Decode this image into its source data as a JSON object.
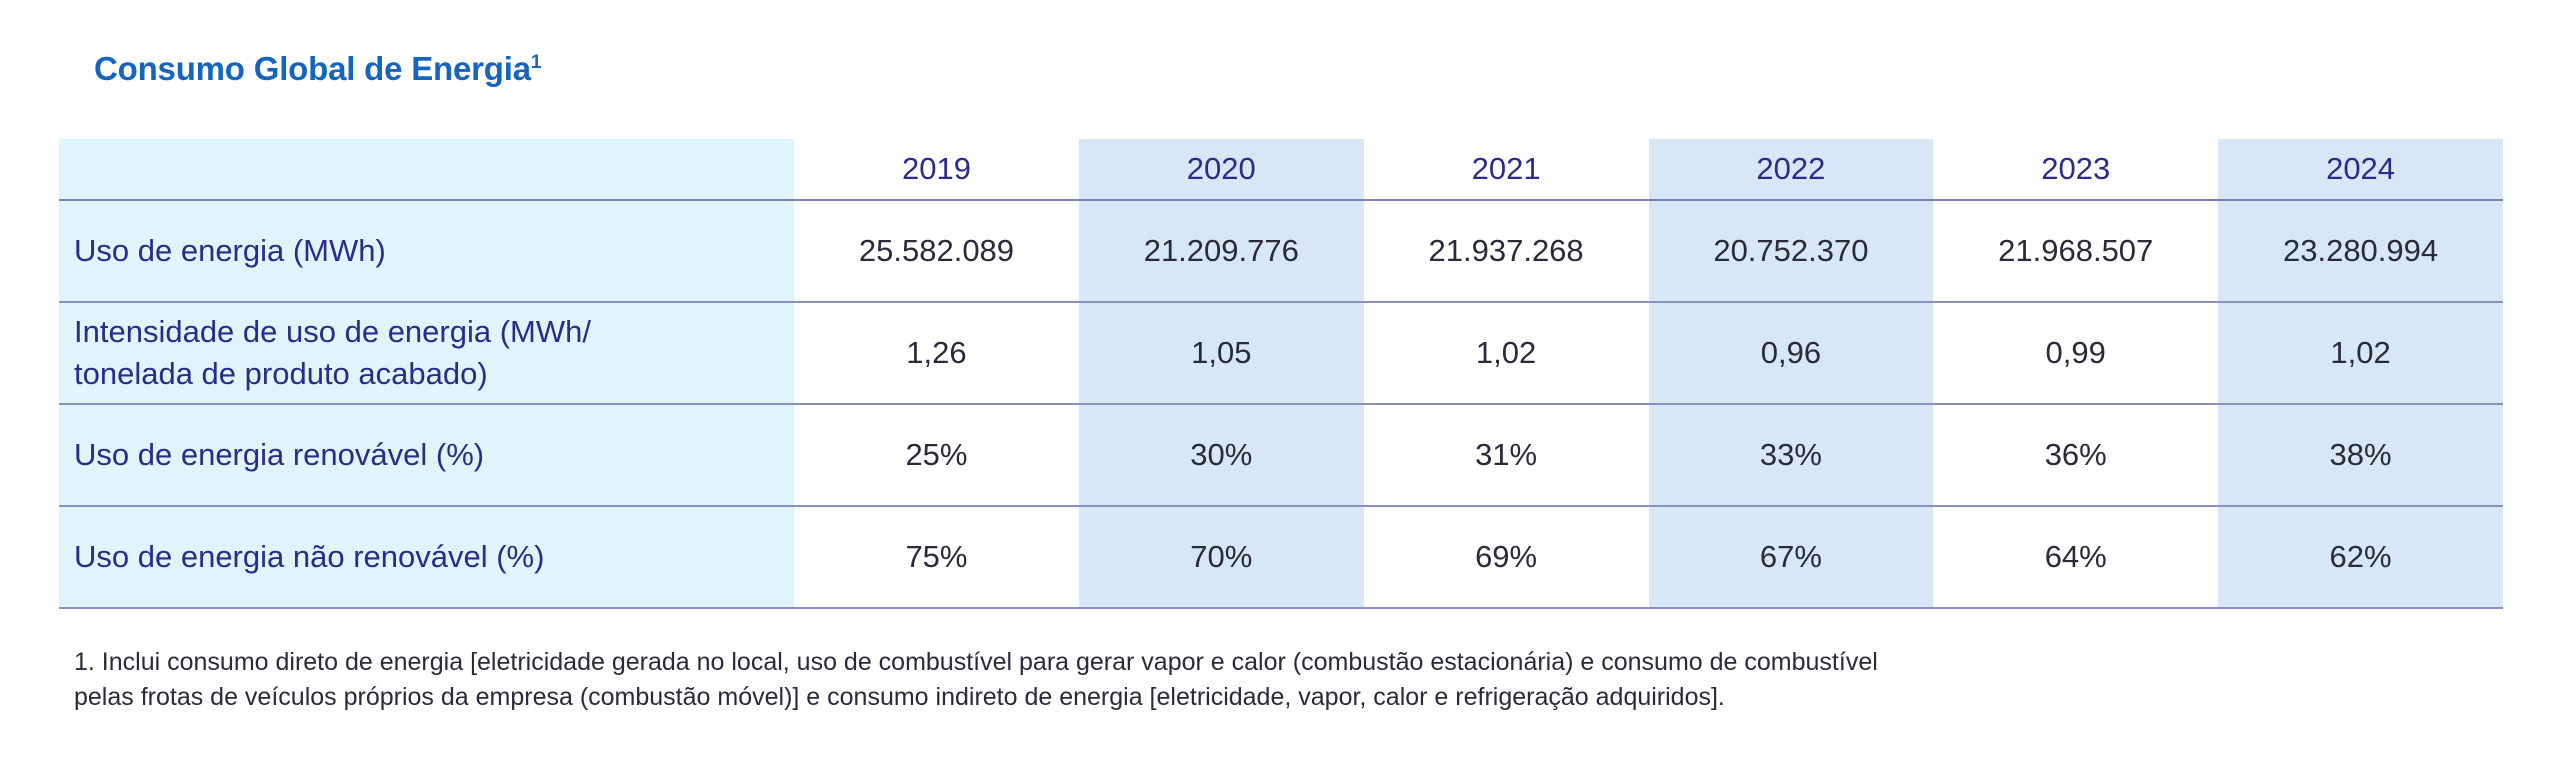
{
  "title": {
    "text": "Consumo Global de Energia",
    "footnote_marker": "1"
  },
  "table": {
    "header_label": "",
    "years": [
      "2019",
      "2020",
      "2021",
      "2022",
      "2023",
      "2024"
    ],
    "rows": [
      {
        "label_line1": "Uso de energia (MWh)",
        "label_line2": "",
        "values": [
          "25.582.089",
          "21.209.776",
          "21.937.268",
          "20.752.370",
          "21.968.507",
          "23.280.994"
        ]
      },
      {
        "label_line1": "Intensidade de uso de energia (MWh/",
        "label_line2": "tonelada de produto acabado)",
        "values": [
          "1,26",
          "1,05",
          "1,02",
          "0,96",
          "0,99",
          "1,02"
        ]
      },
      {
        "label_line1": "Uso de energia renovável (%)",
        "label_line2": "",
        "values": [
          "25%",
          "30%",
          "31%",
          "33%",
          "36%",
          "38%"
        ]
      },
      {
        "label_line1": "Uso de energia não renovável (%)",
        "label_line2": "",
        "values": [
          "75%",
          "70%",
          "69%",
          "67%",
          "64%",
          "62%"
        ]
      }
    ]
  },
  "footnote": {
    "line1": "1. Inclui consumo direto de energia [eletricidade gerada no local, uso de combustível para gerar vapor e calor (combustão estacionária) e consumo de combustível",
    "line2": "pelas frotas de veículos próprios da empresa (combustão móvel)] e consumo indireto de energia [eletricidade, vapor, calor e refrigeração adquiridos]."
  },
  "colors": {
    "title": "#1565c0",
    "label_column_bg": "#e0f4fb",
    "alternate_column_bg": "#d8e7f6",
    "header_text": "#2b2b8a",
    "row_divider": "#8a8fbf"
  }
}
